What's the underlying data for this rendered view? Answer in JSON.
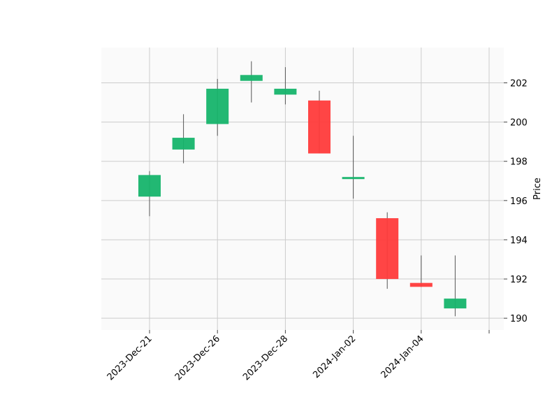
{
  "chart_data": {
    "type": "candlestick",
    "title": "",
    "xlabel": "",
    "ylabel": "Price",
    "ylim": [
      189.4,
      203.8
    ],
    "y_ticks": [
      190,
      192,
      194,
      196,
      198,
      200,
      202
    ],
    "x_tick_labels": [
      "2023-Dec-21",
      "2023-Dec-26",
      "2023-Dec-28",
      "2024-Jan-02",
      "2024-Jan-04"
    ],
    "grid": true,
    "up_color": "#16b46b",
    "down_color": "#ff3b3b",
    "candles": [
      {
        "open": 196.2,
        "high": 197.5,
        "low": 195.2,
        "close": 197.3
      },
      {
        "open": 198.6,
        "high": 200.4,
        "low": 197.9,
        "close": 199.2
      },
      {
        "open": 199.9,
        "high": 202.2,
        "low": 199.3,
        "close": 201.7
      },
      {
        "open": 202.1,
        "high": 203.1,
        "low": 201.0,
        "close": 202.4
      },
      {
        "open": 201.4,
        "high": 202.8,
        "low": 200.9,
        "close": 201.7
      },
      {
        "open": 201.1,
        "high": 201.6,
        "low": 198.4,
        "close": 198.4
      },
      {
        "open": 197.1,
        "high": 199.3,
        "low": 196.1,
        "close": 197.2
      },
      {
        "open": 195.1,
        "high": 195.4,
        "low": 191.5,
        "close": 192.0
      },
      {
        "open": 191.8,
        "high": 193.2,
        "low": 191.6,
        "close": 191.6
      },
      {
        "open": 190.5,
        "high": 193.2,
        "low": 190.1,
        "close": 191.0
      }
    ]
  }
}
